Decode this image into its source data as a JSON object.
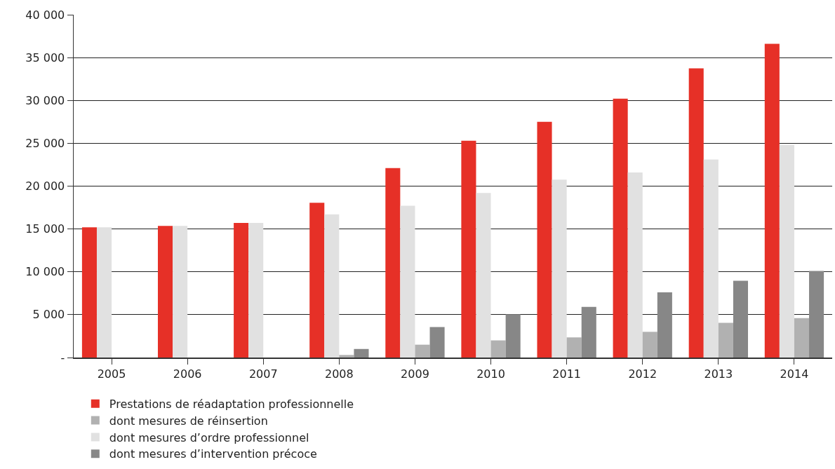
{
  "chart_data": {
    "type": "bar",
    "categories": [
      "2005",
      "2006",
      "2007",
      "2008",
      "2009",
      "2010",
      "2011",
      "2012",
      "2013",
      "2014"
    ],
    "series": [
      {
        "name": "Prestations de réadaptation professionnelle",
        "color": "#e63027",
        "values": [
          15200,
          15350,
          15700,
          18050,
          22100,
          25300,
          27500,
          30200,
          33750,
          36600
        ]
      },
      {
        "name": "dont mesures d’ordre professionnel",
        "color": "#e1e1e1",
        "values": [
          15200,
          15350,
          15700,
          16700,
          17700,
          19200,
          20750,
          21600,
          23100,
          24800
        ]
      },
      {
        "name": "dont mesures de réinsertion",
        "color": "#b1b1b1",
        "values": [
          null,
          null,
          null,
          300,
          1500,
          2000,
          2350,
          3000,
          4050,
          4600
        ]
      },
      {
        "name": "dont mesures d’intervention précoce",
        "color": "#878787",
        "values": [
          null,
          null,
          null,
          1000,
          3550,
          5050,
          5900,
          7600,
          8950,
          10100
        ]
      }
    ],
    "ylim": [
      0,
      40000
    ],
    "yticks": [
      {
        "value": 0,
        "label": "-"
      },
      {
        "value": 5000,
        "label": "5 000"
      },
      {
        "value": 10000,
        "label": "10 000"
      },
      {
        "value": 15000,
        "label": "15 000"
      },
      {
        "value": 20000,
        "label": "20 000"
      },
      {
        "value": 25000,
        "label": "25 000"
      },
      {
        "value": 30000,
        "label": "30 000"
      },
      {
        "value": 35000,
        "label": "35 000"
      },
      {
        "value": 40000,
        "label": "40 000"
      }
    ],
    "grid": "y",
    "legend": "bottom"
  }
}
